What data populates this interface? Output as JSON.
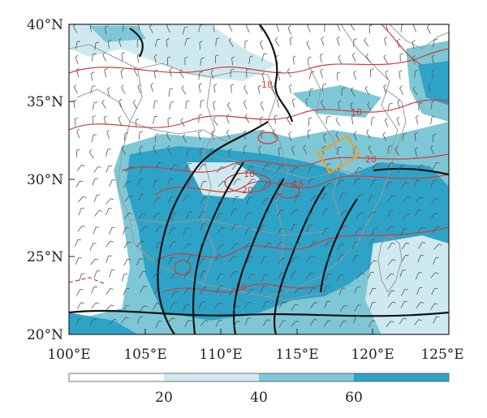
{
  "map": {
    "lat_ticks": [
      "40°N",
      "35°N",
      "30°N",
      "25°N",
      "20°N"
    ],
    "lon_ticks": [
      "100°E",
      "105°E",
      "110°E",
      "115°E",
      "120°E",
      "125°E"
    ],
    "extent": {
      "lon": [
        100,
        125
      ],
      "lat": [
        20,
        40
      ]
    },
    "contour_labels": [
      "18",
      "18",
      "18",
      "18",
      "20",
      "20",
      "20"
    ],
    "highlight_box_color": "#f0a020",
    "land_border_color": "#9a9a9a",
    "red_contour_color": "#d23a3a",
    "black_contour_color": "#111111"
  },
  "colorbar": {
    "tick_labels": [
      "20",
      "40",
      "60"
    ],
    "colors": [
      "#ffffff",
      "#cfe9f0",
      "#7ec7d6",
      "#2ea3c8"
    ]
  }
}
